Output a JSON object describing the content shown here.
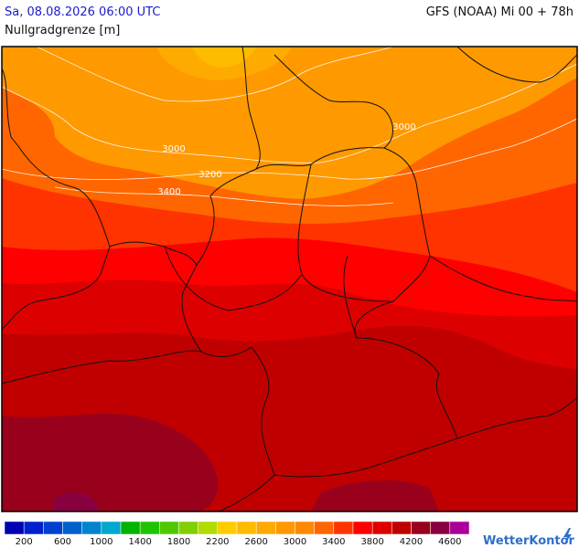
{
  "header": {
    "datetime": "Sa, 08.08.2026 06:00 UTC",
    "model": "GFS (NOAA) Mi 00 + 78h",
    "parameter": "Nullgradgrenze [m]"
  },
  "map": {
    "contour_labels": [
      "3000",
      "3000",
      "3200",
      "3400"
    ]
  },
  "legend": {
    "colors": [
      "#0000b4",
      "#0020d0",
      "#0040d0",
      "#0060cc",
      "#0084cc",
      "#00a8cc",
      "#00b400",
      "#1ec400",
      "#50c800",
      "#80d000",
      "#b0dc00",
      "#ffcc00",
      "#ffbb00",
      "#ffaa00",
      "#ff9900",
      "#ff8800",
      "#ff6600",
      "#ff3300",
      "#ff0000",
      "#dd0000",
      "#c00000",
      "#99001c",
      "#880040",
      "#aa0099"
    ],
    "ticks": [
      200,
      600,
      1000,
      1400,
      1800,
      2200,
      2600,
      3000,
      3400,
      3800,
      4200,
      4600
    ]
  },
  "logo": "WetterKontor"
}
